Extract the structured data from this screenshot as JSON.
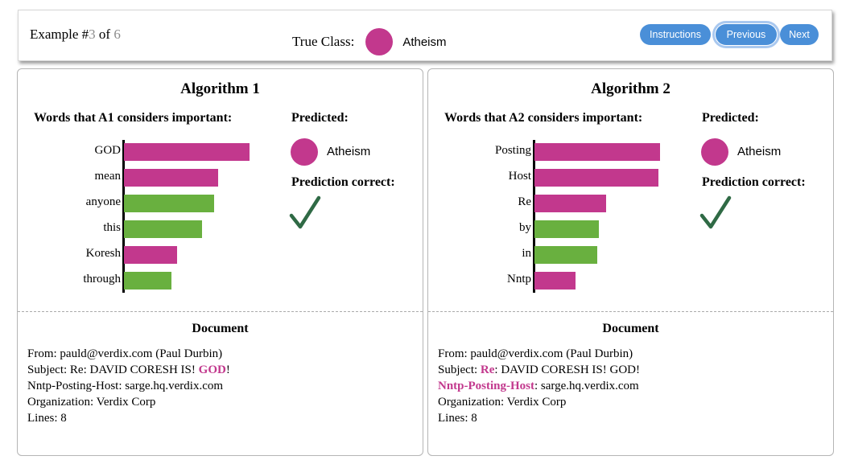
{
  "colors": {
    "magenta": "#c2388d",
    "green": "#69b03f",
    "check": "#2f6a45",
    "button": "#4a8fd8"
  },
  "header": {
    "example_prefix": "Example #",
    "example_current": "3",
    "example_of": " of ",
    "example_total": "6",
    "true_class_label": "True Class:",
    "true_class_value": "Atheism",
    "buttons": {
      "instructions": "Instructions",
      "previous": "Previous",
      "next": "Next"
    }
  },
  "algorithms": [
    {
      "title": "Algorithm 1",
      "words_heading": "Words that A1 considers important:",
      "predicted_heading": "Predicted:",
      "predicted_value": "Atheism",
      "correct_heading": "Prediction correct:",
      "chart_data": {
        "type": "bar",
        "orientation": "horizontal",
        "categories": [
          "GOD",
          "mean",
          "anyone",
          "this",
          "Koresh",
          "through"
        ],
        "values": [
          1.0,
          0.75,
          0.72,
          0.62,
          0.42,
          0.38
        ],
        "bar_colors": [
          "magenta",
          "magenta",
          "green",
          "green",
          "magenta",
          "green"
        ],
        "xlim": [
          0,
          1.0
        ]
      },
      "document_heading": "Document",
      "document": {
        "line1": "From: pauld@verdix.com (Paul Durbin)",
        "line2_a": "Subject: Re: DAVID CORESH IS! ",
        "line2_b": "GOD",
        "line2_c": "!",
        "line3_a": "Nntp-Posting-Host",
        "line3_b": ": sarge.hq.verdix.com",
        "line4": "Organization: Verdix Corp",
        "line5": "Lines: 8"
      }
    },
    {
      "title": "Algorithm 2",
      "words_heading": "Words that A2 considers important:",
      "predicted_heading": "Predicted:",
      "predicted_value": "Atheism",
      "correct_heading": "Prediction correct:",
      "chart_data": {
        "type": "bar",
        "orientation": "horizontal",
        "categories": [
          "Posting",
          "Host",
          "Re",
          "by",
          "in",
          "Nntp"
        ],
        "values": [
          1.0,
          0.99,
          0.57,
          0.51,
          0.5,
          0.33
        ],
        "bar_colors": [
          "magenta",
          "magenta",
          "magenta",
          "green",
          "green",
          "magenta"
        ],
        "xlim": [
          0,
          1.0
        ]
      },
      "document_heading": "Document",
      "document": {
        "line1": "From: pauld@verdix.com (Paul Durbin)",
        "line2_a": "Subject: ",
        "line2_b": "Re",
        "line2_c": ": DAVID CORESH IS! GOD!",
        "line3_a": "Nntp-Posting-Host",
        "line3_b": ": sarge.hq.verdix.com",
        "line4": "Organization: Verdix Corp",
        "line5": "Lines: 8"
      }
    }
  ]
}
